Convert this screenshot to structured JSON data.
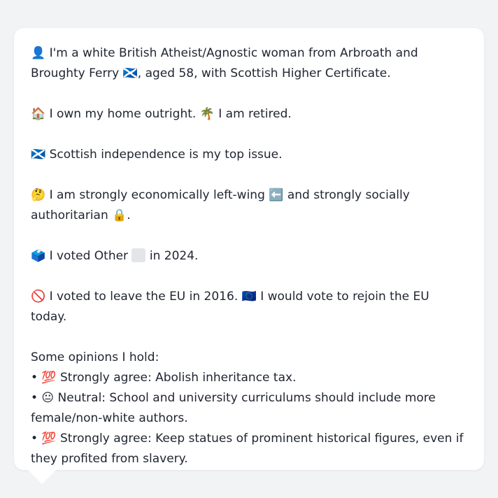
{
  "profile": {
    "line1": "👤 I'm a white British Atheist/Agnostic woman from Arbroath and Broughty Ferry 🏴󠁧󠁢󠁳󠁣󠁴󠁿, aged 58, with Scottish Higher Certificate.",
    "line2": "🏠 I own my home outright. 🌴 I am retired.",
    "line3": "🏴󠁧󠁢󠁳󠁣󠁴󠁿 Scottish independence is my top issue.",
    "line4": "🤔 I am strongly economically left-wing ⬅️ and strongly socially authoritarian 🔒.",
    "line5_pre": "🗳️ I voted Other",
    "line5_post": "in 2024.",
    "line6": "🚫 I voted to leave the EU in 2016. 🇪🇺 I would vote to rejoin the EU today."
  },
  "opinions": {
    "heading": "Some opinions I hold:",
    "items": [
      "• 💯 Strongly agree: Abolish inheritance tax.",
      "• 😐 Neutral: School and university curriculums should include more female/non-white authors.",
      "• 💯 Strongly agree: Keep statues of prominent historical figures, even if they profited from slavery."
    ]
  }
}
